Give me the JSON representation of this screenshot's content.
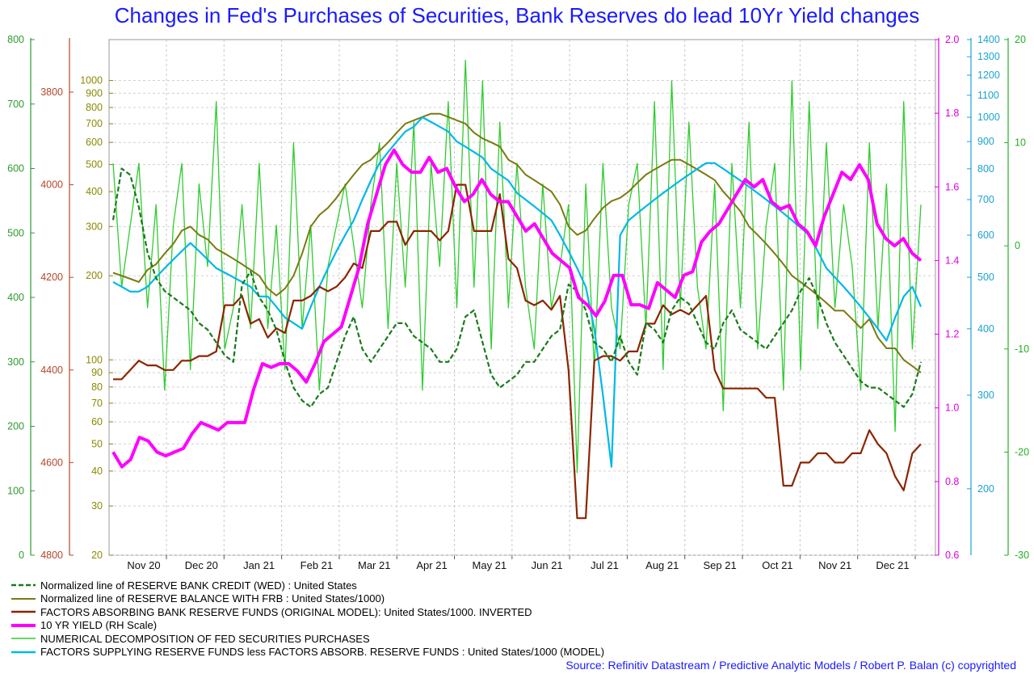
{
  "title": "Changes in Fed's Purchases of Securities, Bank Reserves do lead 10Yr Yield changes",
  "source": "Source: Refinitiv Datastream / Predictive Analytic Models / Robert P. Balan (c) copyrighted",
  "chart_data": {
    "type": "line",
    "x_ticks": [
      "Nov 20",
      "Dec 20",
      "Jan 21",
      "Feb 21",
      "Mar 21",
      "Apr 21",
      "May 21",
      "Jun 21",
      "Jul 21",
      "Aug 21",
      "Sep 21",
      "Oct 21",
      "Nov 21",
      "Dec 21"
    ],
    "grid": true,
    "axes": {
      "left_green": {
        "color": "#2e9a2e",
        "ticks": [
          "800",
          "700",
          "600",
          "500",
          "400",
          "300",
          "200",
          "100",
          "0"
        ]
      },
      "left_brown": {
        "color": "#b5462a",
        "ticks": [
          "3800",
          "4000",
          "4200",
          "4400",
          "4600",
          "4800"
        ]
      },
      "left_olive": {
        "color": "#8a8a00",
        "scale": "log",
        "ticks": [
          "1000",
          "900",
          "800",
          "700",
          "600",
          "500",
          "400",
          "300",
          "200",
          "100",
          "90",
          "80",
          "70",
          "60",
          "50",
          "40",
          "30",
          "20"
        ]
      },
      "right_magenta": {
        "color": "#e000e0",
        "ticks": [
          "2.0",
          "1.8",
          "1.6",
          "1.4",
          "1.2",
          "1.0",
          "0.8",
          "0.6"
        ]
      },
      "right_cyan": {
        "color": "#1aa3d1",
        "scale": "log",
        "ticks": [
          "1400",
          "1300",
          "1200",
          "1100",
          "1000",
          "900",
          "800",
          "700",
          "600",
          "500",
          "400",
          "300",
          "200"
        ]
      },
      "right_green": {
        "color": "#22b022",
        "ticks": [
          "20",
          "10",
          "0",
          "-10",
          "-20",
          "-30"
        ]
      }
    },
    "series": [
      {
        "name": "Normalized line of RESERVE BANK CREDIT (WED) : United States",
        "color": "#1a7a1a",
        "style": "dashed",
        "values": [
          520,
          600,
          590,
          540,
          470,
          430,
          410,
          400,
          390,
          380,
          360,
          350,
          330,
          310,
          300,
          420,
          440,
          400,
          380,
          350,
          300,
          260,
          240,
          230,
          250,
          260,
          300,
          340,
          370,
          320,
          300,
          320,
          340,
          360,
          360,
          340,
          330,
          320,
          300,
          300,
          320,
          370,
          380,
          330,
          280,
          260,
          270,
          280,
          300,
          300,
          320,
          340,
          350,
          420,
          410,
          380,
          330,
          320,
          300,
          340,
          300,
          280,
          360,
          350,
          330,
          380,
          400,
          390,
          360,
          330,
          320,
          360,
          380,
          350,
          340,
          330,
          320,
          340,
          360,
          380,
          410,
          430,
          400,
          360,
          330,
          310,
          290,
          270,
          260,
          260,
          250,
          240,
          230,
          250,
          300
        ]
      },
      {
        "name": "Normalized line of RESERVE BALANCE WITH FRB : United States/1000)",
        "color": "#7a7a10",
        "style": "solid",
        "values": [
          205,
          200,
          195,
          190,
          210,
          220,
          240,
          260,
          290,
          300,
          280,
          270,
          250,
          240,
          230,
          220,
          210,
          200,
          180,
          170,
          180,
          200,
          240,
          300,
          330,
          350,
          380,
          420,
          460,
          500,
          520,
          560,
          600,
          650,
          700,
          720,
          740,
          760,
          760,
          740,
          720,
          700,
          650,
          620,
          600,
          580,
          520,
          500,
          460,
          440,
          420,
          400,
          360,
          300,
          280,
          290,
          320,
          350,
          370,
          380,
          400,
          430,
          460,
          480,
          500,
          520,
          520,
          500,
          480,
          460,
          440,
          400,
          370,
          340,
          300,
          280,
          260,
          240,
          220,
          200,
          190,
          180,
          170,
          160,
          150,
          150,
          140,
          130,
          140,
          120,
          110,
          110,
          100,
          95,
          90
        ]
      },
      {
        "name": "FACTORS ABSORBING BANK RESERVE FUNDS (ORIGINAL MODEL): United States/1000. INVERTED",
        "color": "#8b2500",
        "style": "solid",
        "values": [
          4420,
          4420,
          4400,
          4380,
          4390,
          4390,
          4400,
          4400,
          4380,
          4380,
          4370,
          4370,
          4360,
          4260,
          4260,
          4240,
          4300,
          4290,
          4330,
          4310,
          4320,
          4250,
          4250,
          4240,
          4220,
          4230,
          4220,
          4200,
          4170,
          4180,
          4100,
          4100,
          4080,
          4080,
          4130,
          4100,
          4100,
          4100,
          4120,
          4100,
          4000,
          4000,
          4100,
          4100,
          4100,
          4020,
          4160,
          4180,
          4250,
          4260,
          4250,
          4270,
          4240,
          4400,
          4720,
          4720,
          4380,
          4370,
          4370,
          4380,
          4360,
          4360,
          4300,
          4300,
          4260,
          4280,
          4270,
          4280,
          4260,
          4240,
          4400,
          4440,
          4440,
          4440,
          4440,
          4440,
          4460,
          4460,
          4650,
          4650,
          4600,
          4600,
          4580,
          4580,
          4600,
          4600,
          4580,
          4580,
          4530,
          4560,
          4580,
          4630,
          4660,
          4580,
          4560
        ]
      },
      {
        "name": "10 YR YIELD (RH Scale)",
        "color": "#ff00ff",
        "style": "bold",
        "values": [
          0.88,
          0.84,
          0.86,
          0.92,
          0.91,
          0.88,
          0.87,
          0.88,
          0.89,
          0.93,
          0.96,
          0.95,
          0.94,
          0.96,
          0.96,
          0.96,
          1.05,
          1.12,
          1.11,
          1.12,
          1.12,
          1.1,
          1.07,
          1.12,
          1.18,
          1.2,
          1.22,
          1.3,
          1.38,
          1.5,
          1.58,
          1.66,
          1.7,
          1.66,
          1.64,
          1.64,
          1.68,
          1.64,
          1.65,
          1.6,
          1.56,
          1.58,
          1.62,
          1.58,
          1.56,
          1.56,
          1.52,
          1.48,
          1.5,
          1.46,
          1.42,
          1.4,
          1.38,
          1.3,
          1.28,
          1.25,
          1.29,
          1.36,
          1.36,
          1.28,
          1.28,
          1.27,
          1.34,
          1.32,
          1.3,
          1.36,
          1.37,
          1.45,
          1.48,
          1.5,
          1.54,
          1.58,
          1.62,
          1.6,
          1.62,
          1.56,
          1.54,
          1.55,
          1.5,
          1.48,
          1.44,
          1.52,
          1.58,
          1.64,
          1.62,
          1.66,
          1.62,
          1.5,
          1.46,
          1.44,
          1.46,
          1.42,
          1.4
        ]
      },
      {
        "name": "NUMERICAL DECOMPOSITION OF FED SECURITIES PURCHASES",
        "color": "#2ecc2e",
        "style": "thin",
        "values": [
          8,
          -4,
          2,
          8,
          -6,
          4,
          -14,
          2,
          8,
          -12,
          6,
          -2,
          14,
          -10,
          -6,
          4,
          -8,
          8,
          -8,
          2,
          -12,
          10,
          -8,
          2,
          -14,
          -2,
          2,
          6,
          0,
          -6,
          4,
          10,
          -8,
          8,
          -4,
          12,
          -14,
          8,
          -2,
          14,
          -6,
          18,
          -4,
          16,
          -10,
          12,
          -6,
          8,
          -4,
          -10,
          6,
          -6,
          -2,
          4,
          -22,
          6,
          -12,
          8,
          -6,
          -10,
          4,
          8,
          -8,
          14,
          -12,
          16,
          -6,
          12,
          -4,
          -10,
          6,
          -16,
          8,
          -6,
          12,
          -10,
          2,
          8,
          -14,
          16,
          -12,
          14,
          -8,
          10,
          -6,
          4,
          -2,
          -14,
          10,
          -8,
          6,
          -18,
          14,
          -10,
          4
        ]
      },
      {
        "name": "FACTORS SUPPLYING RESERVE FUNDS less FACTORS ABSORB. RESERVE FUNDS : United States/1000 (MODEL)",
        "color": "#00b8e6",
        "style": "solid",
        "values": [
          490,
          480,
          470,
          470,
          480,
          500,
          520,
          540,
          560,
          580,
          560,
          540,
          520,
          510,
          500,
          490,
          480,
          460,
          460,
          440,
          420,
          410,
          400,
          440,
          480,
          520,
          560,
          600,
          640,
          700,
          760,
          820,
          860,
          900,
          940,
          960,
          1000,
          980,
          960,
          940,
          900,
          880,
          860,
          840,
          800,
          780,
          760,
          720,
          700,
          680,
          660,
          640,
          600,
          560,
          520,
          480,
          400,
          300,
          220,
          600,
          640,
          660,
          680,
          700,
          720,
          740,
          760,
          780,
          800,
          820,
          820,
          800,
          780,
          760,
          740,
          720,
          700,
          680,
          660,
          640,
          620,
          600,
          560,
          520,
          500,
          480,
          460,
          440,
          420,
          400,
          380,
          420,
          460,
          480,
          440
        ]
      }
    ]
  }
}
